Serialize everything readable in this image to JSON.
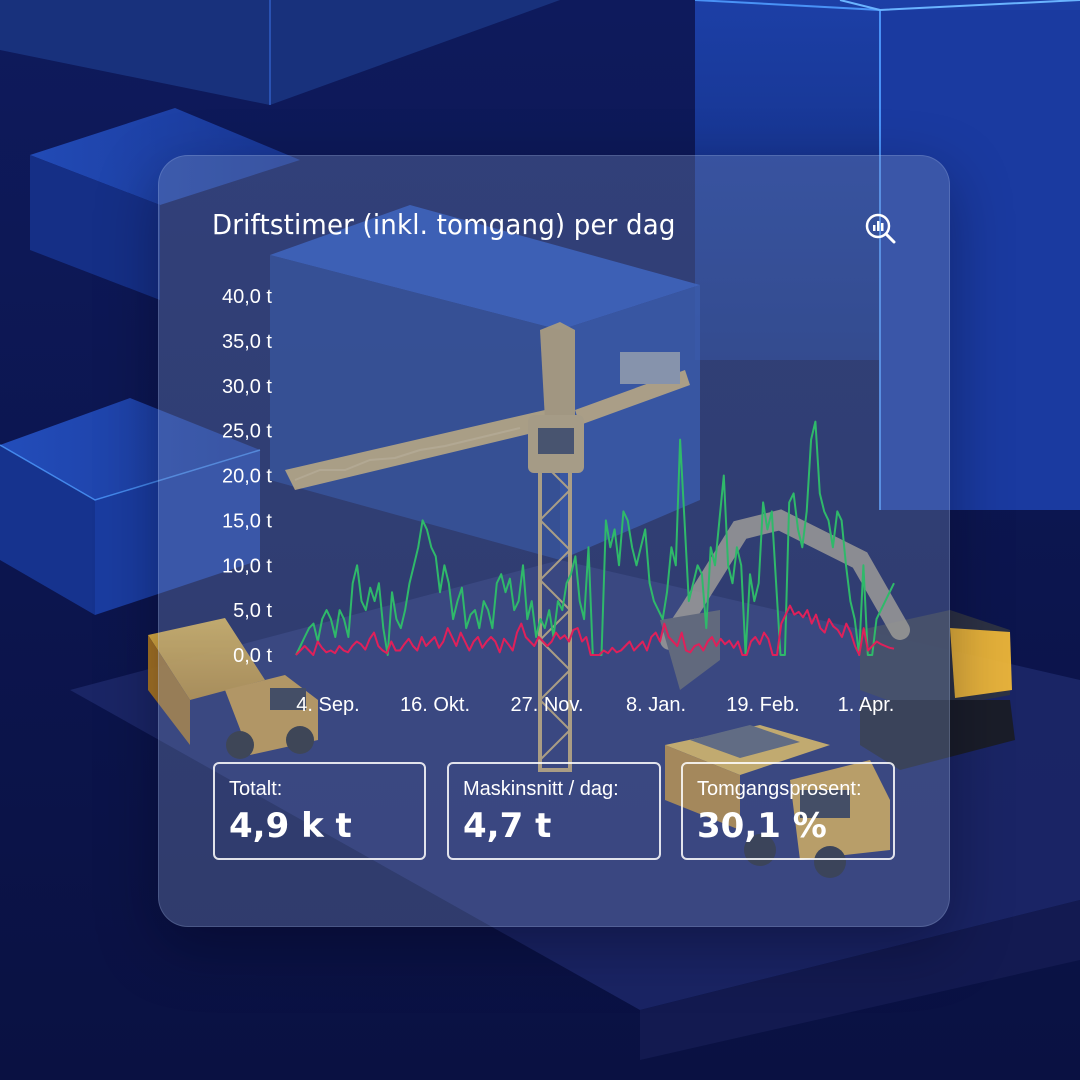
{
  "title": "Driftstimer (inkl. tomgang) per dag",
  "icon": "chart-zoom-icon",
  "colors": {
    "total": "#2fb96a",
    "idle": "#e0205a"
  },
  "chart_data": {
    "type": "line",
    "y_ticks": [
      "40,0 t",
      "35,0 t",
      "30,0 t",
      "25,0 t",
      "20,0 t",
      "15,0 t",
      "10,0 t",
      "5,0 t",
      "0,0 t"
    ],
    "ylim": [
      0,
      40
    ],
    "x_ticks": [
      "4. Sep.",
      "16. Okt.",
      "27. Nov.",
      "8. Jan.",
      "19. Feb.",
      "1. Apr."
    ],
    "x_start": "2023-08-29",
    "x_end": "2024-04-10",
    "series": [
      {
        "color": "#2fb96a",
        "values": [
          0,
          1,
          2,
          3,
          3.5,
          1.5,
          4,
          5,
          4,
          2,
          5,
          4,
          2,
          8,
          10,
          6,
          5,
          7.5,
          6,
          8,
          3,
          0,
          7,
          4,
          3,
          5,
          8,
          10,
          12,
          15,
          14,
          12,
          11,
          7,
          10,
          8,
          4,
          6,
          7.5,
          3,
          4.5,
          5,
          3,
          6,
          5,
          3,
          8,
          9,
          7,
          8.5,
          5,
          6,
          10,
          4,
          6,
          2,
          4,
          3,
          5,
          2,
          6,
          5,
          8,
          9,
          11,
          6,
          4,
          12,
          0,
          0,
          0,
          15,
          12,
          14,
          10,
          16,
          15,
          12,
          10,
          12,
          14,
          8,
          6,
          5,
          4,
          7,
          12,
          10,
          24,
          15,
          6,
          8,
          10,
          9,
          3,
          12,
          10,
          15,
          20,
          10,
          8,
          12,
          10,
          0,
          9,
          6,
          8,
          17,
          14,
          16,
          8,
          0,
          0,
          17,
          18,
          14,
          12,
          16,
          24,
          26,
          18,
          16,
          15,
          12,
          16,
          15,
          10,
          6,
          4,
          0,
          10,
          0,
          0,
          4,
          5,
          6,
          7,
          8
        ]
      },
      {
        "color": "#e0205a",
        "values": [
          0,
          0.5,
          1,
          0.5,
          0,
          1.5,
          0.8,
          0.3,
          0.5,
          0.2,
          1,
          0.5,
          0.3,
          1,
          1.5,
          1.2,
          0.6,
          1.8,
          2.5,
          1,
          0.5,
          0.2,
          1.5,
          0.5,
          0.5,
          1.2,
          1.8,
          1,
          0.5,
          2,
          1,
          1.5,
          2,
          0.8,
          1.5,
          3,
          2,
          1,
          2.5,
          1.5,
          0.5,
          1.5,
          2,
          0.8,
          1.5,
          2,
          1.5,
          0.3,
          1.8,
          1.2,
          0.5,
          2.5,
          3.5,
          2,
          1.5,
          1,
          2,
          1.5,
          1,
          1.5,
          2.5,
          1.8,
          2.2,
          1.5,
          2.8,
          3,
          1.5,
          2,
          0,
          0,
          0,
          0.5,
          0.2,
          0.8,
          0.3,
          0.5,
          1,
          1.5,
          0.5,
          1,
          1.5,
          0.5,
          2,
          2.5,
          1.5,
          3.5,
          2,
          1.5,
          1,
          2.5,
          0.5,
          0.3,
          1,
          1.2,
          0.5,
          1.5,
          2,
          1,
          1.8,
          1.2,
          1.6,
          0.8,
          1.5,
          0,
          0,
          1.5,
          2,
          1.2,
          2.5,
          1.8,
          0,
          0,
          3.5,
          4.5,
          5.5,
          4.5,
          4.8,
          4.2,
          5,
          3.5,
          4.5,
          3,
          2.5,
          4,
          3.2,
          2.8,
          2,
          3.5,
          2.5,
          1,
          0,
          3,
          0.5,
          1,
          1.5,
          1.2,
          1,
          0.8,
          0.7
        ]
      }
    ]
  },
  "stats": [
    {
      "label": "Totalt:",
      "value": "4,9 k t"
    },
    {
      "label": "Maskinsnitt / dag:",
      "value": "4,7 t"
    },
    {
      "label": "Tomgangsprosent:",
      "value": "30,1 %"
    }
  ]
}
